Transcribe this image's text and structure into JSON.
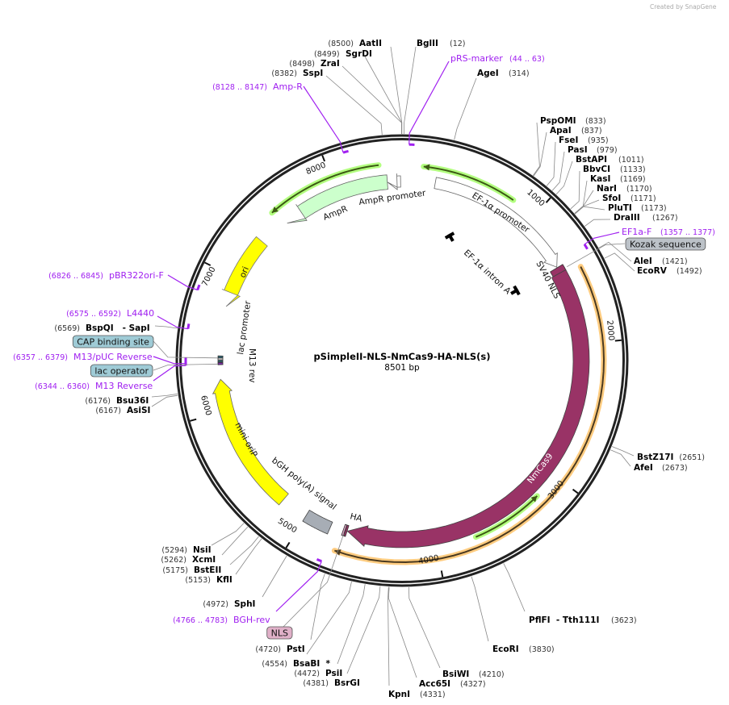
{
  "credit": "Created by SnapGene",
  "plasmid": {
    "name": "pSimpleII-NLS-NmCas9-HA-NLS(s)",
    "length_label": "8501 bp",
    "length_bp": 8501
  },
  "ticks": [
    "1000",
    "2000",
    "3000",
    "4000",
    "5000",
    "6000",
    "7000",
    "8000"
  ],
  "colors": {
    "ampr": "#ccffcc",
    "ori": "#ffff00",
    "cas9": "#993366",
    "orange": "#ffcc80",
    "green": "#b3ff80",
    "primer": "#a020f0",
    "box": "#bcc2c8",
    "lac": "#9fcbd6",
    "nls": "#e0b0c8"
  },
  "sites": [
    {
      "name": "AatII",
      "pos": "(8500)"
    },
    {
      "name": "SgrDI",
      "pos": "(8499)"
    },
    {
      "name": "ZraI",
      "pos": "(8498)"
    },
    {
      "name": "SspI",
      "pos": "(8382)"
    },
    {
      "name": "Amp-R",
      "pos": "(8128 .. 8147)",
      "primer": true
    },
    {
      "name": "BglII",
      "pos": "(12)"
    },
    {
      "name": "pRS-marker",
      "pos": "(44 .. 63)",
      "primer": true
    },
    {
      "name": "AgeI",
      "pos": "(314)"
    },
    {
      "name": "PspOMI",
      "pos": "(833)"
    },
    {
      "name": "ApaI",
      "pos": "(837)"
    },
    {
      "name": "FseI",
      "pos": "(935)"
    },
    {
      "name": "PasI",
      "pos": "(979)"
    },
    {
      "name": "BstAPI",
      "pos": "(1011)"
    },
    {
      "name": "BbvCI",
      "pos": "(1133)"
    },
    {
      "name": "KasI",
      "pos": "(1169)"
    },
    {
      "name": "NarI",
      "pos": "(1170)"
    },
    {
      "name": "SfoI",
      "pos": "(1171)"
    },
    {
      "name": "PluTI",
      "pos": "(1173)"
    },
    {
      "name": "DraIII",
      "pos": "(1267)"
    },
    {
      "name": "EF1a-F",
      "pos": "(1357 .. 1377)",
      "primer": true
    },
    {
      "name": "AleI",
      "pos": "(1421)"
    },
    {
      "name": "EcoRV",
      "pos": "(1492)"
    },
    {
      "name": "BstZ17I",
      "pos": "(2651)"
    },
    {
      "name": "AfeI",
      "pos": "(2673)"
    },
    {
      "name": "PflFI  - Tth111I",
      "pos": "(3623)"
    },
    {
      "name": "EcoRI",
      "pos": "(3830)"
    },
    {
      "name": "BsiWI",
      "pos": "(4210)"
    },
    {
      "name": "Acc65I",
      "pos": "(4327)"
    },
    {
      "name": "KpnI",
      "pos": "(4331)"
    },
    {
      "name": "BsrGI",
      "pos": "(4381)"
    },
    {
      "name": "PsiI",
      "pos": "(4472)"
    },
    {
      "name": "BsaBI  *",
      "pos": "(4554)"
    },
    {
      "name": "PstI",
      "pos": "(4720)"
    },
    {
      "name": "BGH-rev",
      "pos": "(4766 .. 4783)",
      "primer": true
    },
    {
      "name": "SphI",
      "pos": "(4972)"
    },
    {
      "name": "KflI",
      "pos": "(5153)"
    },
    {
      "name": "BstEII",
      "pos": "(5175)"
    },
    {
      "name": "XcmI",
      "pos": "(5262)"
    },
    {
      "name": "NsiI",
      "pos": "(5294)"
    },
    {
      "name": "AsiSI",
      "pos": "(6167)"
    },
    {
      "name": "Bsu36I",
      "pos": "(6176)"
    },
    {
      "name": "M13 Reverse",
      "pos": "(6344 .. 6360)",
      "primer": true
    },
    {
      "name": "M13/pUC Reverse",
      "pos": "(6357 .. 6379)",
      "primer": true
    },
    {
      "name": "BspQI   - SapI",
      "pos": "(6569)"
    },
    {
      "name": "L4440",
      "pos": "(6575 .. 6592)",
      "primer": true
    },
    {
      "name": "pBR322ori-F",
      "pos": "(6826 .. 6845)",
      "primer": true
    }
  ],
  "boxed_features": [
    {
      "label": "Kozak sequence",
      "bp": 1425
    },
    {
      "label": "CAP binding site",
      "bp": 6395
    },
    {
      "label": "lac operator",
      "bp": 6350
    },
    {
      "label": "NLS",
      "bp": 4690
    }
  ],
  "features": [
    {
      "label": "AmpR promoter",
      "start": 8390,
      "end": 8490,
      "dir": -1
    },
    {
      "label": "AmpR",
      "start": 7560,
      "end": 8390,
      "dir": -1
    },
    {
      "label": "EF-1α promoter",
      "start": 250,
      "end": 1390,
      "dir": 1
    },
    {
      "label": "EF-1α intron A",
      "start": 1000,
      "end": 1000,
      "dir": 0
    },
    {
      "label": "SV40 NLS",
      "start": 1395,
      "end": 1440,
      "dir": 1
    },
    {
      "label": "NmCas9",
      "start": 1440,
      "end": 4670,
      "dir": 1
    },
    {
      "label": "HA",
      "start": 4672,
      "end": 4700,
      "dir": 1
    },
    {
      "label": "bGH poly(A) signal",
      "start": 4800,
      "end": 5000,
      "dir": 0
    },
    {
      "label": "mini-oriP",
      "start": 5205,
      "end": 6236,
      "dir": 1
    },
    {
      "label": "M13 rev",
      "start": 6345,
      "end": 6362,
      "dir": 0
    },
    {
      "label": "lac promoter",
      "start": 6365,
      "end": 6395,
      "dir": 0
    },
    {
      "label": "ori",
      "start": 6780,
      "end": 7330,
      "dir": -1
    }
  ]
}
